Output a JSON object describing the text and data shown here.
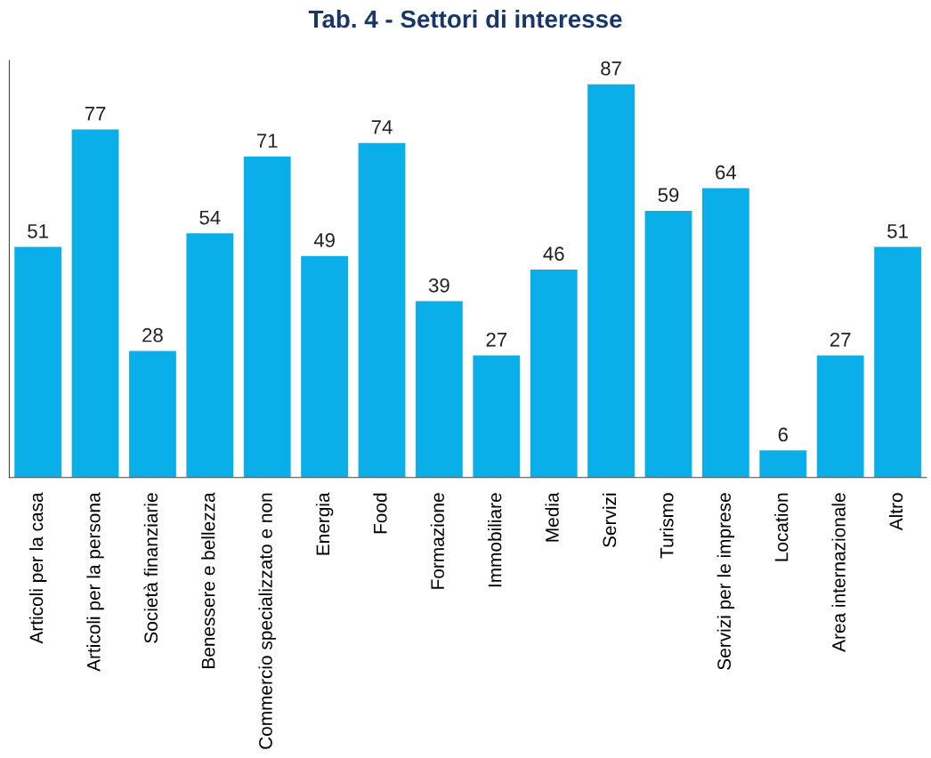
{
  "chart_data": {
    "type": "bar",
    "title": "Tab. 4 - Settori di interesse",
    "categories": [
      "Articoli per la casa",
      "Articoli per la persona",
      "Società finanziarie",
      "Benessere e bellezza",
      "Commercio specializzato e non",
      "Energia",
      "Food",
      "Formazione",
      "Immobiliare",
      "Media",
      "Servizi",
      "Turismo",
      "Servizi per le imprese",
      "Location",
      "Area internazionale",
      "Altro"
    ],
    "values": [
      51,
      77,
      28,
      54,
      71,
      49,
      74,
      39,
      27,
      46,
      87,
      59,
      64,
      6,
      27,
      51
    ],
    "color": "#0aaee8",
    "data_labels": true,
    "tick_labels": "x",
    "grid": false,
    "legend": false
  }
}
